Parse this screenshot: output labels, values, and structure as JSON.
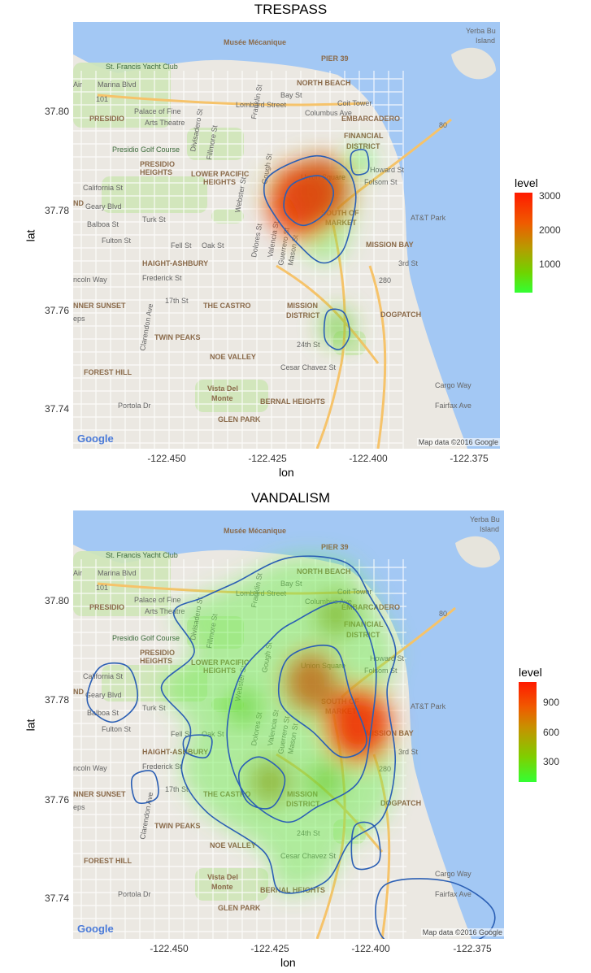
{
  "panels": [
    {
      "title": "TRESPASS",
      "xlabel": "lon",
      "ylabel": "lat",
      "y_ticks": [
        "37.80",
        "37.78",
        "37.76",
        "37.74"
      ],
      "x_ticks": [
        "-122.450",
        "-122.425",
        "-122.400",
        "-122.375"
      ],
      "legend": {
        "title": "level",
        "labels": [
          "3000",
          "2000",
          "1000"
        ]
      },
      "credit": "Map data ©2016 Google",
      "logo": "Google"
    },
    {
      "title": "VANDALISM",
      "xlabel": "lon",
      "ylabel": "lat",
      "y_ticks": [
        "37.80",
        "37.78",
        "37.76",
        "37.74"
      ],
      "x_ticks": [
        "-122.450",
        "-122.425",
        "-122.400",
        "-122.375"
      ],
      "legend": {
        "title": "level",
        "labels": [
          "900",
          "600",
          "300"
        ]
      },
      "credit": "Map data ©2016 Google",
      "logo": "Google"
    }
  ],
  "map_labels": {
    "yacht_club": "St. Francis Yacht Club",
    "musee": "Musée Mécanique",
    "pier39": "PIER 39",
    "north_beach": "NORTH BEACH",
    "yerba": "Yerba Bu",
    "island": "Island",
    "coit": "Coit Tower",
    "lombard": "Lombard Street",
    "embarcadero": "EMBARCADERO",
    "presidio": "PRESIDIO",
    "palace": "Palace of Fine",
    "arts": "Arts Theatre",
    "financial": "FINANCIAL",
    "district": "DISTRICT",
    "golf": "Presidio Golf Course",
    "presidio_heights": "PRESIDIO",
    "heights": "HEIGHTS",
    "lower_pacific": "LOWER PACIFIC",
    "lower_heights": "HEIGHTS",
    "union_square": "Union Square",
    "south_of": "SOUTH OF",
    "market": "MARKET",
    "att": "AT&T Park",
    "mission_bay": "MISSION BAY",
    "haight": "HAIGHT-ASHBURY",
    "inner_sunset": "NNER SUNSET",
    "the_castro": "THE CASTRO",
    "mission": "MISSION",
    "mission_district": "DISTRICT",
    "dogpatch": "DOGPATCH",
    "twin_peaks": "TWIN PEAKS",
    "noe_valley": "NOE VALLEY",
    "forest_hill": "FOREST HILL",
    "vista": "Vista Del",
    "monte": "Monte",
    "bernal": "BERNAL HEIGHTS",
    "glen_park": "GLEN PARK",
    "cesar": "Cesar Chavez St",
    "st24": "24th St",
    "st17": "17th St",
    "california": "California St",
    "geary": "Geary Blvd",
    "balboa": "Balboa St",
    "turk": "Turk St",
    "fulton": "Fulton St",
    "fell": "Fell St",
    "oak": "Oak St",
    "frederick": "Frederick St",
    "lincoln": "ncoln Way",
    "portola": "Portola Dr",
    "clarendon": "Clarendon Ave",
    "eps": "eps",
    "marina": "Marina Blvd",
    "air": "Air",
    "fillmore": "Fillmore St",
    "gough": "Gough St",
    "dolores": "Dolores St",
    "valencia": "Valencia St",
    "guerrero": "Guerrero St",
    "mason": "Mason St",
    "third": "3rd St",
    "cargo": "Cargo Way",
    "fairfax": "Fairfax Ave",
    "bay": "Bay St",
    "columbus": "Columbus Ave",
    "divisadero": "Divisadero St",
    "franklin": "Franklin St",
    "howard": "Howard St",
    "folsom": "Folsom St",
    "webster": "Webster St",
    "nd": "ND",
    "hw101": "101",
    "hw80": "80",
    "hw280": "280"
  },
  "chart_data": [
    {
      "type": "heatmap",
      "title": "TRESPASS",
      "xlabel": "lon",
      "ylabel": "lat",
      "xlim": [
        -122.4715,
        -122.3665
      ],
      "ylim": [
        37.7325,
        37.8185
      ],
      "x_ticks": [
        -122.45,
        -122.425,
        -122.4,
        -122.375
      ],
      "y_ticks": [
        37.8,
        37.78,
        37.76,
        37.74
      ],
      "legend_title": "level",
      "legend_ticks": [
        3000,
        2000,
        1000
      ],
      "level_range": [
        0,
        3200
      ],
      "color_low": "#33ff33",
      "color_high": "#ff2200",
      "grid": false,
      "legend_position": "right",
      "hotspots": [
        {
          "lon": -122.4155,
          "lat": 37.7825,
          "level": 3000
        },
        {
          "lon": -122.4105,
          "lat": 37.7845,
          "level": 2600
        },
        {
          "lon": -122.4065,
          "lat": 37.757,
          "level": 700
        },
        {
          "lon": -122.401,
          "lat": 37.7905,
          "level": 120
        }
      ],
      "contours": [
        [
          [
            -122.4225,
            37.788
          ],
          [
            -122.412,
            37.7915
          ],
          [
            -122.4045,
            37.789
          ],
          [
            -122.402,
            37.784
          ],
          [
            -122.403,
            37.778
          ],
          [
            -122.4055,
            37.772
          ],
          [
            -122.4105,
            37.77
          ],
          [
            -122.4165,
            37.774
          ],
          [
            -122.4215,
            37.779
          ],
          [
            -122.4245,
            37.784
          ]
        ],
        [
          [
            -122.418,
            37.7855
          ],
          [
            -122.411,
            37.7875
          ],
          [
            -122.4075,
            37.7845
          ],
          [
            -122.4095,
            37.78
          ],
          [
            -122.415,
            37.7775
          ],
          [
            -122.4195,
            37.7805
          ]
        ],
        [
          [
            -122.409,
            37.76
          ],
          [
            -122.405,
            37.76
          ],
          [
            -122.4035,
            37.7555
          ],
          [
            -122.406,
            37.7525
          ],
          [
            -122.4095,
            37.7545
          ]
        ],
        [
          [
            -122.403,
            37.792
          ],
          [
            -122.3995,
            37.7925
          ],
          [
            -122.399,
            37.7885
          ],
          [
            -122.4025,
            37.788
          ]
        ]
      ]
    },
    {
      "type": "heatmap",
      "title": "VANDALISM",
      "xlabel": "lon",
      "ylabel": "lat",
      "xlim": [
        -122.4715,
        -122.3665
      ],
      "ylim": [
        37.7325,
        37.8185
      ],
      "x_ticks": [
        -122.45,
        -122.425,
        -122.4,
        -122.375
      ],
      "y_ticks": [
        37.8,
        37.78,
        37.76,
        37.74
      ],
      "legend_title": "level",
      "legend_ticks": [
        900,
        600,
        300
      ],
      "level_range": [
        100,
        1100
      ],
      "color_low": "#33ff33",
      "color_high": "#ff2200",
      "grid": false,
      "legend_position": "right",
      "hotspots": [
        {
          "lon": -122.4135,
          "lat": 37.784,
          "level": 800
        },
        {
          "lon": -122.402,
          "lat": 37.7755,
          "level": 1050
        },
        {
          "lon": -122.4235,
          "lat": 37.764,
          "level": 500
        },
        {
          "lon": -122.4075,
          "lat": 37.7975,
          "level": 450
        },
        {
          "lon": -122.41,
          "lat": 37.764,
          "level": 350
        },
        {
          "lon": -122.43,
          "lat": 37.779,
          "level": 300
        }
      ],
      "contours": [
        [
          [
            -122.432,
            37.804
          ],
          [
            -122.419,
            37.809
          ],
          [
            -122.405,
            37.808
          ],
          [
            -122.399,
            37.801
          ],
          [
            -122.393,
            37.791
          ],
          [
            -122.395,
            37.782
          ],
          [
            -122.393,
            37.768
          ],
          [
            -122.396,
            37.757
          ],
          [
            -122.404,
            37.752
          ],
          [
            -122.41,
            37.744
          ],
          [
            -122.421,
            37.742
          ],
          [
            -122.425,
            37.75
          ],
          [
            -122.439,
            37.758
          ],
          [
            -122.445,
            37.766
          ],
          [
            -122.443,
            37.775
          ],
          [
            -122.45,
            37.783
          ],
          [
            -122.442,
            37.79
          ],
          [
            -122.447,
            37.798
          ],
          [
            -122.44,
            37.801
          ]
        ],
        [
          [
            -122.418,
            37.796
          ],
          [
            -122.405,
            37.8
          ],
          [
            -122.398,
            37.789
          ],
          [
            -122.399,
            37.774
          ],
          [
            -122.402,
            37.764
          ],
          [
            -122.412,
            37.759
          ],
          [
            -122.42,
            37.756
          ],
          [
            -122.43,
            37.762
          ],
          [
            -122.434,
            37.773
          ],
          [
            -122.431,
            37.785
          ],
          [
            -122.424,
            37.792
          ]
        ],
        [
          [
            -122.419,
            37.789
          ],
          [
            -122.408,
            37.791
          ],
          [
            -122.404,
            37.782
          ],
          [
            -122.4,
            37.772
          ],
          [
            -122.406,
            37.769
          ],
          [
            -122.413,
            37.774
          ],
          [
            -122.421,
            37.78
          ]
        ],
        [
          [
            -122.431,
            37.766
          ],
          [
            -122.426,
            37.769
          ],
          [
            -122.42,
            37.765
          ],
          [
            -122.423,
            37.759
          ],
          [
            -122.429,
            37.76
          ]
        ],
        [
          [
            -122.465,
            37.787
          ],
          [
            -122.458,
            37.787
          ],
          [
            -122.456,
            37.78
          ],
          [
            -122.462,
            37.776
          ],
          [
            -122.468,
            37.78
          ]
        ],
        [
          [
            -122.457,
            37.765
          ],
          [
            -122.452,
            37.766
          ],
          [
            -122.451,
            37.761
          ],
          [
            -122.456,
            37.76
          ]
        ],
        [
          [
            -122.444,
            37.773
          ],
          [
            -122.438,
            37.773
          ],
          [
            -122.439,
            37.769
          ],
          [
            -122.444,
            37.77
          ]
        ],
        [
          [
            -122.403,
            37.755
          ],
          [
            -122.398,
            37.755
          ],
          [
            -122.397,
            37.748
          ],
          [
            -122.403,
            37.747
          ]
        ],
        [
          [
            -122.396,
            37.743
          ],
          [
            -122.38,
            37.744
          ],
          [
            -122.369,
            37.738
          ],
          [
            -122.374,
            37.732
          ],
          [
            -122.395,
            37.732
          ]
        ]
      ]
    }
  ]
}
